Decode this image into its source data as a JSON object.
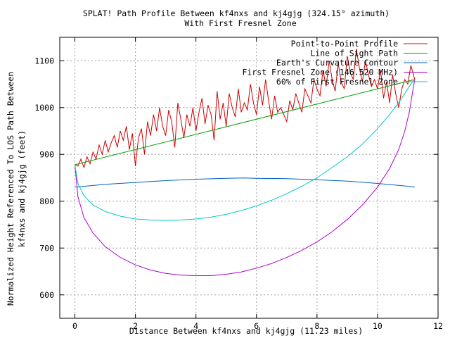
{
  "chart_data": {
    "type": "line",
    "title": "SPLAT! Path Profile Between kf4nxs and kj4gjg (324.15° azimuth)",
    "subtitle": "With First Fresnel Zone",
    "xlabel": "Distance Between kf4nxs and kj4gjg (11.23 miles)",
    "ylabel_line1": "Normalized Height Referenced To LOS Path Between",
    "ylabel_line2": "kf4nxs and kj4gjg (feet)",
    "xlim": [
      -0.5,
      12
    ],
    "ylim": [
      550,
      1150
    ],
    "x_ticks": [
      0,
      2,
      4,
      6,
      8,
      10,
      12
    ],
    "y_ticks": [
      600,
      700,
      800,
      900,
      1000,
      1100
    ],
    "grid": true,
    "legend_placement": "top-right",
    "path_length_miles": 11.23,
    "series": [
      {
        "name": "Point-to-Point Profile",
        "color": "#d00000",
        "x": [
          0,
          0.1,
          0.2,
          0.3,
          0.4,
          0.5,
          0.6,
          0.7,
          0.8,
          0.9,
          1.0,
          1.1,
          1.2,
          1.3,
          1.4,
          1.5,
          1.6,
          1.7,
          1.8,
          1.9,
          2.0,
          2.1,
          2.2,
          2.3,
          2.4,
          2.5,
          2.6,
          2.7,
          2.8,
          2.9,
          3.0,
          3.1,
          3.2,
          3.3,
          3.4,
          3.5,
          3.6,
          3.7,
          3.8,
          3.9,
          4.0,
          4.1,
          4.2,
          4.3,
          4.4,
          4.5,
          4.6,
          4.7,
          4.8,
          4.9,
          5.0,
          5.1,
          5.2,
          5.3,
          5.4,
          5.5,
          5.6,
          5.7,
          5.8,
          5.9,
          6.0,
          6.1,
          6.2,
          6.3,
          6.4,
          6.5,
          6.6,
          6.7,
          6.8,
          6.9,
          7.0,
          7.1,
          7.2,
          7.3,
          7.4,
          7.5,
          7.6,
          7.7,
          7.8,
          7.9,
          8.0,
          8.1,
          8.2,
          8.3,
          8.4,
          8.5,
          8.6,
          8.7,
          8.8,
          8.9,
          9.0,
          9.1,
          9.2,
          9.3,
          9.4,
          9.5,
          9.6,
          9.7,
          9.8,
          9.9,
          10.0,
          10.1,
          10.2,
          10.3,
          10.4,
          10.5,
          10.6,
          10.7,
          10.8,
          10.9,
          11.0,
          11.1,
          11.23
        ],
        "values": [
          878,
          875,
          890,
          872,
          895,
          880,
          905,
          890,
          920,
          900,
          930,
          905,
          925,
          940,
          915,
          950,
          930,
          960,
          910,
          945,
          875,
          935,
          955,
          900,
          970,
          940,
          985,
          950,
          1000,
          960,
          940,
          995,
          970,
          915,
          1010,
          975,
          935,
          985,
          960,
          1000,
          950,
          990,
          1020,
          965,
          1005,
          985,
          930,
          1035,
          975,
          1010,
          960,
          1030,
          1000,
          980,
          1040,
          990,
          1010,
          995,
          1050,
          1010,
          985,
          1045,
          1005,
          1060,
          1015,
          975,
          1025,
          990,
          1000,
          985,
          970,
          1015,
          995,
          1030,
          1010,
          990,
          1040,
          1025,
          1010,
          1060,
          1040,
          1025,
          1080,
          1045,
          1100,
          1060,
          1035,
          1095,
          1055,
          1040,
          1110,
          1075,
          1060,
          1125,
          1085,
          1055,
          1100,
          1070,
          1045,
          1060,
          1040,
          1080,
          1020,
          1055,
          1010,
          1070,
          1030,
          1000,
          1040,
          1060,
          1050,
          1090,
          1060
        ]
      },
      {
        "name": "Line of Sight Path",
        "color": "#00a000",
        "x": [
          0,
          11.23
        ],
        "values": [
          878,
          1060
        ]
      },
      {
        "name": "Earth's Curvature Contour",
        "color": "#0060c0",
        "x": [
          0,
          1,
          2,
          3,
          4,
          5,
          5.615,
          6,
          7,
          8,
          9,
          10,
          11,
          11.23
        ],
        "values": [
          830,
          836,
          840,
          844,
          847,
          849,
          849.5,
          849,
          848,
          846,
          843,
          838,
          832,
          830
        ]
      },
      {
        "name": "First Fresnel Zone (146.520 MHz)",
        "color": "#b000d0",
        "x": [
          0,
          0.1,
          0.3,
          0.6,
          1,
          1.5,
          2,
          2.5,
          3,
          3.5,
          4,
          4.5,
          5,
          5.5,
          6,
          6.5,
          7,
          7.5,
          8,
          8.5,
          9,
          9.5,
          10,
          10.4,
          10.7,
          10.9,
          11.05,
          11.15,
          11.23
        ],
        "values": [
          878,
          810,
          765,
          732,
          703,
          680,
          664,
          653,
          646,
          642,
          641,
          641,
          644,
          649,
          657,
          667,
          680,
          695,
          713,
          735,
          761,
          792,
          830,
          870,
          910,
          950,
          990,
          1030,
          1060
        ]
      },
      {
        "name": "60% of First Fresnel Zone",
        "color": "#00c8c8",
        "x": [
          0,
          0.1,
          0.3,
          0.6,
          1,
          1.5,
          2,
          2.5,
          3,
          3.5,
          4,
          4.5,
          5,
          5.5,
          6,
          6.5,
          7,
          7.5,
          8,
          8.5,
          9,
          9.5,
          10,
          10.4,
          10.7,
          10.9,
          11.05,
          11.15,
          11.23
        ],
        "values": [
          878,
          838,
          812,
          792,
          778,
          768,
          762,
          760,
          759,
          760,
          762,
          766,
          772,
          780,
          790,
          802,
          816,
          832,
          850,
          872,
          895,
          922,
          955,
          985,
          1010,
          1030,
          1045,
          1055,
          1060
        ]
      }
    ]
  }
}
